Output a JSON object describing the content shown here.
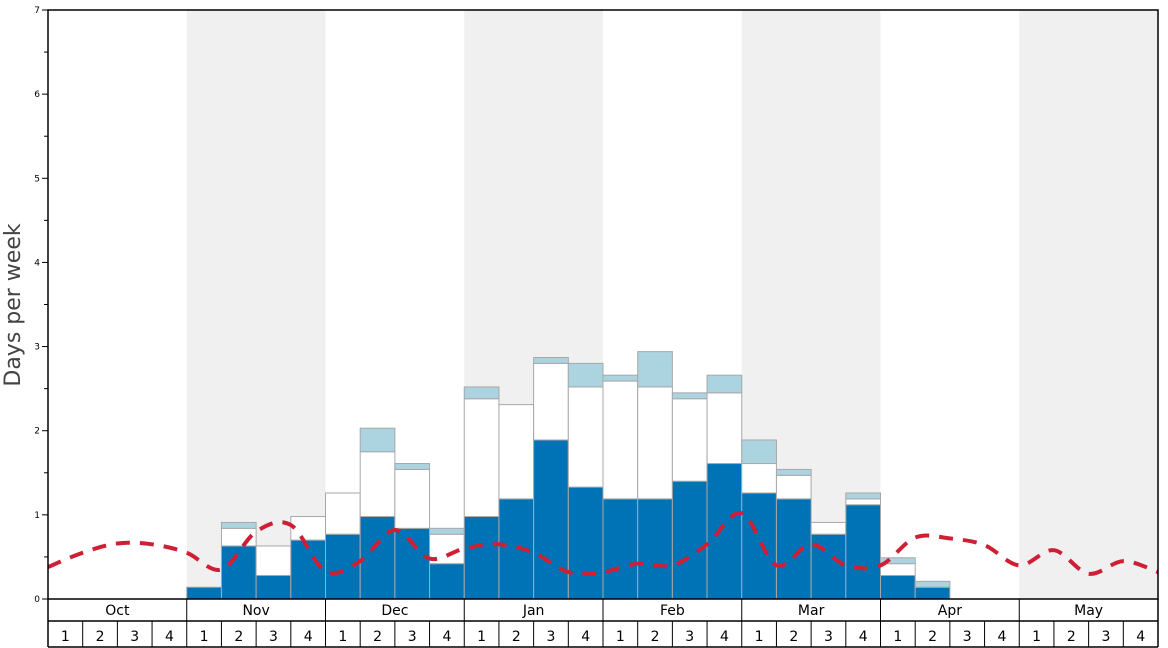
{
  "chart_data": {
    "type": "bar",
    "ylabel": "Days per week",
    "xlabel": "",
    "ylim": [
      0,
      7
    ],
    "yticks": [
      "0",
      "1",
      "2",
      "3",
      "4",
      "5",
      "6",
      "7"
    ],
    "months": [
      "Oct",
      "Nov",
      "Dec",
      "Jan",
      "Feb",
      "Mar",
      "Apr",
      "May"
    ],
    "week_labels": [
      "1",
      "2",
      "3",
      "4"
    ],
    "stack_order": [
      "dark",
      "white",
      "light"
    ],
    "series": [
      {
        "key": "dark",
        "color": "#0073b6",
        "values": [
          0,
          0,
          0,
          0,
          0.14,
          0.63,
          0.28,
          0.7,
          0.77,
          0.98,
          0.84,
          0.42,
          0.98,
          1.19,
          1.89,
          1.33,
          1.19,
          1.19,
          1.4,
          1.61,
          1.26,
          1.19,
          0.77,
          1.12,
          0.28,
          0.14,
          0,
          0,
          0,
          0,
          0,
          0
        ]
      },
      {
        "key": "white",
        "color": "#ffffff",
        "values": [
          0,
          0,
          0,
          0,
          0,
          0.21,
          0.35,
          0.28,
          0.49,
          0.77,
          0.7,
          0.35,
          1.4,
          1.12,
          0.91,
          1.19,
          1.4,
          1.33,
          0.98,
          0.84,
          0.35,
          0.28,
          0.14,
          0.07,
          0.14,
          0,
          0,
          0,
          0,
          0,
          0,
          0
        ]
      },
      {
        "key": "light",
        "color": "#acd3e0",
        "values": [
          0,
          0,
          0,
          0,
          0,
          0.07,
          0,
          0,
          0,
          0.28,
          0.07,
          0.07,
          0.14,
          0,
          0.07,
          0.28,
          0.07,
          0.42,
          0.07,
          0.21,
          0.28,
          0.07,
          0,
          0.07,
          0.07,
          0.07,
          0,
          0,
          0,
          0,
          0,
          0
        ]
      }
    ],
    "line": {
      "style": "dashed",
      "color": "#cf1f35",
      "values": [
        0.38,
        0.55,
        0.66,
        0.65,
        0.55,
        0.35,
        0.8,
        0.88,
        0.33,
        0.45,
        0.82,
        0.48,
        0.6,
        0.65,
        0.55,
        0.32,
        0.32,
        0.42,
        0.4,
        0.65,
        1.02,
        0.4,
        0.65,
        0.4,
        0.4,
        0.73,
        0.72,
        0.64,
        0.4,
        0.58,
        0.3,
        0.45,
        0.32
      ]
    },
    "shaded_months": [
      1,
      3,
      5,
      7
    ],
    "colors": {
      "band": "#f0f0f0",
      "bar_outline": "#a8a8a8",
      "frame": "#000000"
    }
  }
}
